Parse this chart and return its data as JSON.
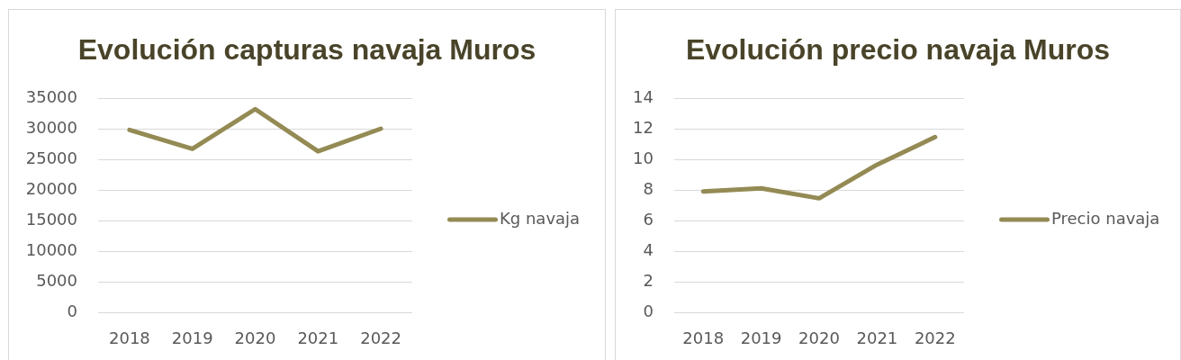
{
  "chart_data": [
    {
      "type": "line",
      "title": "Evolución capturas navaja Muros",
      "categories": [
        "2018",
        "2019",
        "2020",
        "2021",
        "2022"
      ],
      "series": [
        {
          "name": "Kg navaja",
          "color": "#948a54",
          "values": [
            29800,
            26700,
            33200,
            26300,
            30000
          ]
        }
      ],
      "ylim": [
        0,
        35000
      ],
      "yticks": [
        0,
        5000,
        10000,
        15000,
        20000,
        25000,
        30000,
        35000
      ],
      "grid": "y",
      "legend": "right"
    },
    {
      "type": "line",
      "title": "Evolución precio navaja Muros",
      "categories": [
        "2018",
        "2019",
        "2020",
        "2021",
        "2022"
      ],
      "series": [
        {
          "name": "Precio navaja",
          "color": "#948a54",
          "values": [
            7.9,
            8.1,
            7.45,
            9.65,
            11.45
          ]
        }
      ],
      "ylim": [
        0,
        14
      ],
      "yticks": [
        0,
        2,
        4,
        6,
        8,
        10,
        12,
        14
      ],
      "grid": "y",
      "legend": "right"
    }
  ]
}
